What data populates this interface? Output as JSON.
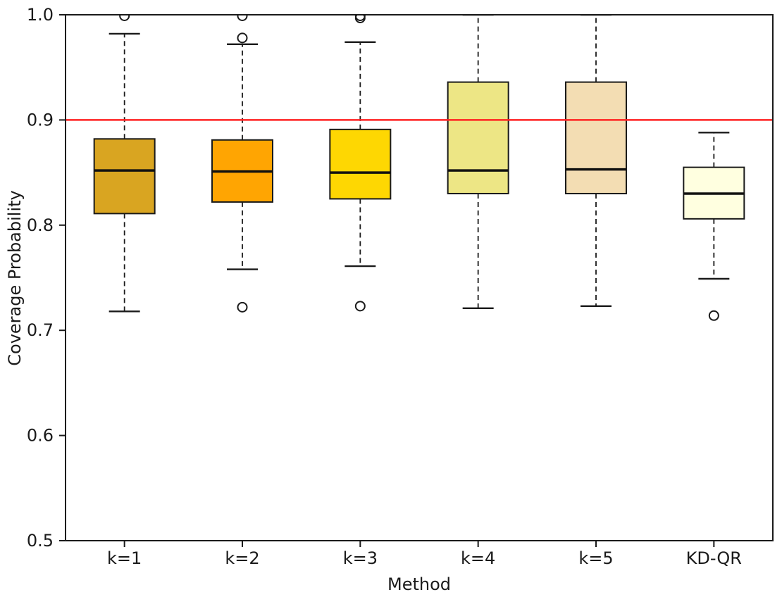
{
  "figure": {
    "background": "#ffffff",
    "frame_color": "#1a1a1a",
    "text_color": "#1a1a1a"
  },
  "chart_data": {
    "type": "boxplot",
    "title": "",
    "xlabel": "Method",
    "ylabel": "Coverage Probability",
    "ylim": [
      0.5,
      1.0
    ],
    "yticks": [
      {
        "value": 0.5,
        "label": "0.5"
      },
      {
        "value": 0.6,
        "label": "0.6"
      },
      {
        "value": 0.7,
        "label": "0.7"
      },
      {
        "value": 0.8,
        "label": "0.8"
      },
      {
        "value": 0.9,
        "label": "0.9"
      },
      {
        "value": 1.0,
        "label": "1.0"
      }
    ],
    "reference_line": {
      "value": 0.9,
      "color": "#ff2222"
    },
    "grid": false,
    "categories": [
      "k=1",
      "k=2",
      "k=3",
      "k=4",
      "k=5",
      "KD-QR"
    ],
    "series": [
      {
        "label": "k=1",
        "color": "#D9A521",
        "whislo": 0.718,
        "q1": 0.811,
        "med": 0.852,
        "q3": 0.882,
        "whishi": 0.982,
        "fliers": [
          0.999
        ]
      },
      {
        "label": "k=2",
        "color": "#FFA502",
        "whislo": 0.758,
        "q1": 0.822,
        "med": 0.851,
        "q3": 0.881,
        "whishi": 0.972,
        "fliers": [
          0.722,
          0.978,
          0.999
        ]
      },
      {
        "label": "k=3",
        "color": "#FED702",
        "whislo": 0.761,
        "q1": 0.825,
        "med": 0.85,
        "q3": 0.891,
        "whishi": 0.974,
        "fliers": [
          0.723,
          0.997,
          0.999
        ]
      },
      {
        "label": "k=4",
        "color": "#EDE685",
        "whislo": 0.721,
        "q1": 0.83,
        "med": 0.852,
        "q3": 0.936,
        "whishi": 1.0,
        "fliers": []
      },
      {
        "label": "k=5",
        "color": "#F3DDB3",
        "whislo": 0.723,
        "q1": 0.83,
        "med": 0.853,
        "q3": 0.936,
        "whishi": 1.0,
        "fliers": []
      },
      {
        "label": "KD-QR",
        "color": "#FFFFE0",
        "whislo": 0.749,
        "q1": 0.806,
        "med": 0.83,
        "q3": 0.855,
        "whishi": 0.888,
        "fliers": [
          0.714
        ]
      }
    ]
  }
}
